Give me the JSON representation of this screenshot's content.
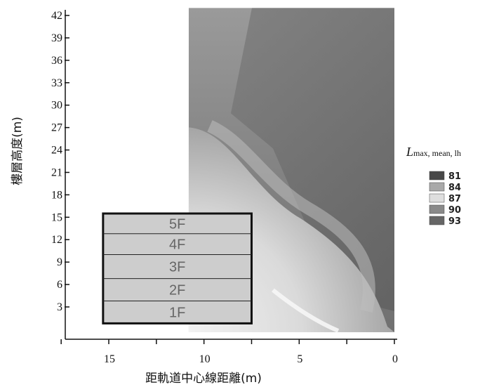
{
  "chart_data": {
    "type": "heatmap",
    "title": "",
    "xlabel": "距軌道中心線距離(m)",
    "ylabel": "樓層高度(m)",
    "x_reversed": true,
    "xlim": [
      17.5,
      0
    ],
    "ylim": [
      0,
      43
    ],
    "x_ticks": [
      15,
      10,
      5,
      0
    ],
    "y_ticks": [
      3,
      6,
      9,
      12,
      15,
      18,
      21,
      24,
      27,
      30,
      33,
      36,
      39,
      42
    ],
    "legend": {
      "title_main": "L",
      "title_sub": "max, mean, lh",
      "placement": "right",
      "entries": [
        {
          "label": "81",
          "color": "#484848"
        },
        {
          "label": "84",
          "color": "#a9a9a9"
        },
        {
          "label": "87",
          "color": "#dedede"
        },
        {
          "label": "90",
          "color": "#8a8a8a"
        },
        {
          "label": "93",
          "color": "#666666"
        }
      ]
    },
    "contour_region": {
      "x_range": [
        0,
        10.8
      ],
      "y_range": [
        0,
        43
      ]
    },
    "building": {
      "x_range": [
        7.5,
        15.3
      ],
      "floors": [
        {
          "label": "1F",
          "y_range": [
            0.8,
            3.8
          ]
        },
        {
          "label": "2F",
          "y_range": [
            3.8,
            6.8
          ]
        },
        {
          "label": "3F",
          "y_range": [
            6.8,
            10.0
          ]
        },
        {
          "label": "4F",
          "y_range": [
            10.0,
            12.8
          ]
        },
        {
          "label": "5F",
          "y_range": [
            12.8,
            15.5
          ]
        }
      ]
    }
  }
}
